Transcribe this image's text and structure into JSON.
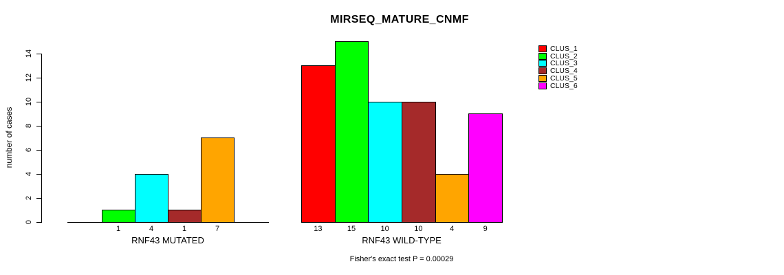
{
  "chart_data": {
    "type": "bar",
    "title": "MIRSEQ_MATURE_CNMF",
    "ylabel": "number of cases",
    "xlabel": "",
    "annotation": "Fisher's exact test P = 0.00029",
    "ylim": [
      0,
      14
    ],
    "yticks": [
      0,
      2,
      4,
      6,
      8,
      10,
      12,
      14
    ],
    "grid": false,
    "legend_position": "top-right",
    "legend": [
      {
        "label": "CLUS_1",
        "color": "#FF0000"
      },
      {
        "label": "CLUS_2",
        "color": "#00FF00"
      },
      {
        "label": "CLUS_3",
        "color": "#00FFFF"
      },
      {
        "label": "CLUS_4",
        "color": "#A52A2A"
      },
      {
        "label": "CLUS_5",
        "color": "#FFA500"
      },
      {
        "label": "CLUS_6",
        "color": "#FF00FF"
      }
    ],
    "groups": [
      {
        "label": "RNF43 MUTATED",
        "bars": [
          {
            "cluster": "CLUS_2",
            "value": 1,
            "color": "#00FF00"
          },
          {
            "cluster": "CLUS_3",
            "value": 4,
            "color": "#00FFFF"
          },
          {
            "cluster": "CLUS_4",
            "value": 1,
            "color": "#A52A2A"
          },
          {
            "cluster": "CLUS_5",
            "value": 7,
            "color": "#FFA500"
          }
        ]
      },
      {
        "label": "RNF43 WILD-TYPE",
        "bars": [
          {
            "cluster": "CLUS_1",
            "value": 13,
            "color": "#FF0000"
          },
          {
            "cluster": "CLUS_2",
            "value": 15,
            "color": "#00FF00"
          },
          {
            "cluster": "CLUS_3",
            "value": 10,
            "color": "#00FFFF"
          },
          {
            "cluster": "CLUS_4",
            "value": 10,
            "color": "#A52A2A"
          },
          {
            "cluster": "CLUS_5",
            "value": 4,
            "color": "#FFA500"
          },
          {
            "cluster": "CLUS_6",
            "value": 9,
            "color": "#FF00FF"
          }
        ]
      }
    ]
  }
}
